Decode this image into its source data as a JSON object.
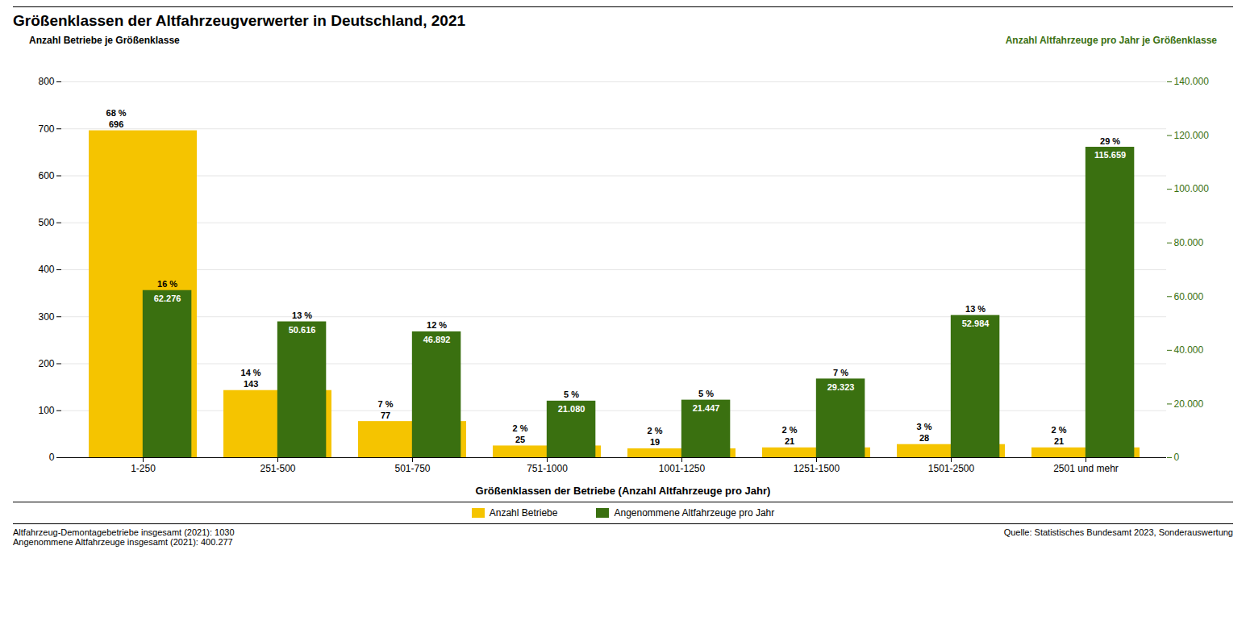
{
  "chart_data": {
    "type": "bar",
    "title": "Größenklassen der Altfahrzeugverwerter in Deutschland, 2021",
    "categories": [
      "1-250",
      "251-500",
      "501-750",
      "751-1000",
      "1001-1250",
      "1251-1500",
      "1501-2500",
      "2501 und mehr"
    ],
    "series": [
      {
        "name": "Anzahl Betriebe",
        "color": "#F5C400",
        "values": [
          696,
          143,
          77,
          25,
          19,
          21,
          28,
          21
        ],
        "share_labels": [
          "68 %",
          "14 %",
          "7 %",
          "2 %",
          "2 %",
          "2 %",
          "3 %",
          "2 %"
        ]
      },
      {
        "name": "Angenommene Altfahrzeuge pro Jahr",
        "color": "#3A7010",
        "axis": "y2",
        "values": [
          62276,
          50616,
          46892,
          21080,
          21447,
          29323,
          52984,
          115659
        ],
        "value_labels": [
          "62.276",
          "50.616",
          "46.892",
          "21.080",
          "21.447",
          "29.323",
          "52.984",
          "115.659"
        ],
        "share_labels": [
          "16 %",
          "13 %",
          "12 %",
          "5 %",
          "5 %",
          "7 %",
          "13 %",
          "29 %"
        ]
      }
    ],
    "xlabel": "Größenklassen der Betriebe (Anzahl Altfahrzeuge pro Jahr)",
    "ylabel": "Anzahl Betriebe je Größenklasse",
    "y2label": "Anzahl Altfahrzeuge pro Jahr je Größenklasse",
    "ylim": [
      0,
      800
    ],
    "yticks": [
      0,
      100,
      200,
      300,
      400,
      500,
      600,
      700,
      800
    ],
    "y2lim": [
      0,
      140000
    ],
    "y2ticks": [
      0,
      {
        "value": 20000,
        "label": "20.000"
      },
      {
        "value": 40000,
        "label": "40.000"
      },
      {
        "value": 60000,
        "label": "60.000"
      },
      {
        "value": 80000,
        "label": "80.000"
      },
      {
        "value": 100000,
        "label": "100.000"
      },
      {
        "value": 120000,
        "label": "120.000"
      },
      {
        "value": 140000,
        "label": "140.000"
      }
    ],
    "grid": true,
    "legend": "bottom",
    "data_labels": true,
    "annotations": [
      "Altfahrzeug-Demontagebetriebe insgesamt (2021): 1030",
      "Angenommene Altfahrzeuge insgesamt (2021): 400.277"
    ],
    "source": "Quelle: Statistisches Bundesamt 2023, Sonderauswertung"
  }
}
